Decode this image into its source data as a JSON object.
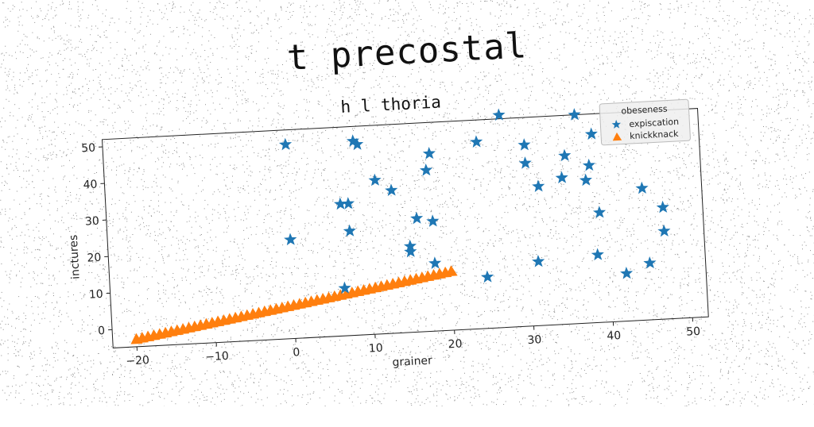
{
  "title": "t precostal",
  "chart_data": {
    "type": "scatter",
    "subtitle": "h l thoria",
    "xlabel": "grainer",
    "ylabel": "inctures",
    "xlim": [
      -23,
      52
    ],
    "ylim": [
      -5,
      52
    ],
    "xticks": [
      -20,
      -10,
      0,
      10,
      20,
      30,
      40,
      50
    ],
    "yticks": [
      0,
      10,
      20,
      30,
      40,
      50
    ],
    "legend": {
      "title": "obeseness",
      "placement": "top-right"
    },
    "series": [
      {
        "name": "expiscation",
        "marker": "star",
        "color": "#1f77b4",
        "points": [
          [
            0,
            48
          ],
          [
            0,
            22
          ],
          [
            6.5,
            31
          ],
          [
            7.5,
            31
          ],
          [
            7.5,
            23.5
          ],
          [
            8.5,
            48
          ],
          [
            9,
            47
          ],
          [
            11,
            37
          ],
          [
            13,
            34
          ],
          [
            15,
            18.5
          ],
          [
            15,
            17
          ],
          [
            16,
            26
          ],
          [
            17.5,
            39
          ],
          [
            18,
            43.5
          ],
          [
            18,
            25
          ],
          [
            18,
            13.5
          ],
          [
            24,
            46
          ],
          [
            24.5,
            9
          ],
          [
            27,
            53
          ],
          [
            30,
            44.5
          ],
          [
            30,
            39.5
          ],
          [
            31,
            12.5
          ],
          [
            31.5,
            33
          ],
          [
            34.5,
            35
          ],
          [
            35,
            41
          ],
          [
            36.5,
            52
          ],
          [
            37.5,
            34
          ],
          [
            38,
            38
          ],
          [
            38.5,
            46.5
          ],
          [
            38.5,
            13.5
          ],
          [
            39,
            25
          ],
          [
            42,
            8
          ],
          [
            44.5,
            31
          ],
          [
            45,
            10.5
          ],
          [
            47,
            25.5
          ],
          [
            47,
            19
          ],
          [
            6.5,
            8
          ]
        ]
      },
      {
        "name": "knickknack",
        "marker": "triangle",
        "color": "#ff7f0e",
        "x_start": -20,
        "x_end": 20,
        "y_start": -3,
        "y_end": 11,
        "count": 55
      }
    ]
  }
}
